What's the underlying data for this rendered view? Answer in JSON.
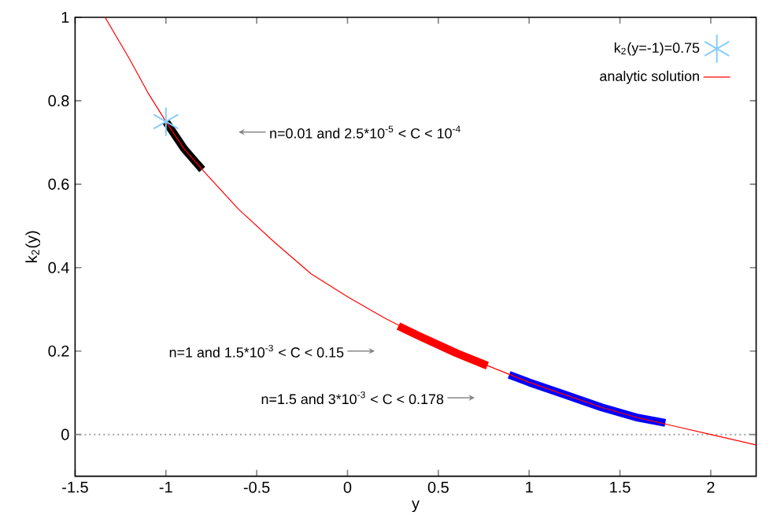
{
  "chart_data": {
    "type": "line",
    "xlabel": "y",
    "ylabel": "k$_{2}$(y)",
    "xlim": [
      -1.5,
      2.25
    ],
    "ylim": [
      -0.1,
      1
    ],
    "xticks": [
      -1.5,
      -1,
      -0.5,
      0,
      0.5,
      1,
      1.5,
      2
    ],
    "yticks": [
      0,
      0.2,
      0.4,
      0.6,
      0.8,
      1
    ],
    "grid": false,
    "legend": "top right",
    "series": [
      {
        "color": "#000000",
        "x": [
          -1.0,
          -0.9,
          -0.8
        ],
        "values": [
          0.75,
          0.685,
          0.635
        ]
      },
      {
        "color": "#ff0000",
        "x": [
          0.28,
          0.4,
          0.6,
          0.77
        ],
        "values": [
          0.26,
          0.235,
          0.195,
          0.165
        ]
      },
      {
        "color": "#0000ff",
        "x": [
          0.89,
          1.0,
          1.2,
          1.4,
          1.6,
          1.75
        ],
        "values": [
          0.143,
          0.125,
          0.095,
          0.065,
          0.04,
          0.028
        ]
      },
      {
        "type": "scatter",
        "name": "k$_{2}$(y=-1)=0.75",
        "color": "#87cefa",
        "marker": "cross",
        "x": [
          -1.0
        ],
        "values": [
          0.75
        ]
      },
      {
        "name": "analytic solution",
        "color": "#ff0000",
        "x": [
          -1.335,
          -1.2,
          -1.1,
          -1.0,
          -0.9,
          -0.8,
          -0.6,
          -0.4,
          -0.2,
          0.0,
          0.2,
          0.4,
          0.6,
          0.8,
          1.0,
          1.2,
          1.4,
          1.6,
          1.8,
          2.0,
          2.25
        ],
        "values": [
          1.0,
          0.9,
          0.82,
          0.75,
          0.685,
          0.635,
          0.54,
          0.46,
          0.385,
          0.33,
          0.28,
          0.235,
          0.195,
          0.16,
          0.125,
          0.095,
          0.065,
          0.04,
          0.02,
          0.0,
          -0.025
        ]
      }
    ],
    "ref_lines": [
      {
        "axis": "y",
        "value": 0,
        "color": "#a0a0a0",
        "line_style": "dotted"
      }
    ],
    "annotations": [
      {
        "text": "n=0.01 and 2.5*10$^{-5}$ < C < 10$^{-4}$",
        "x": -0.6,
        "y": 0.725
      },
      {
        "text": "n=1 and 1.5*10$^{-3}$ < C < 0.15",
        "x": 0.15,
        "y": 0.2
      },
      {
        "text": "n=1.5 and 3*10$^{-3}$ < C < 0.178",
        "x": 0.7,
        "y": 0.088
      }
    ]
  }
}
